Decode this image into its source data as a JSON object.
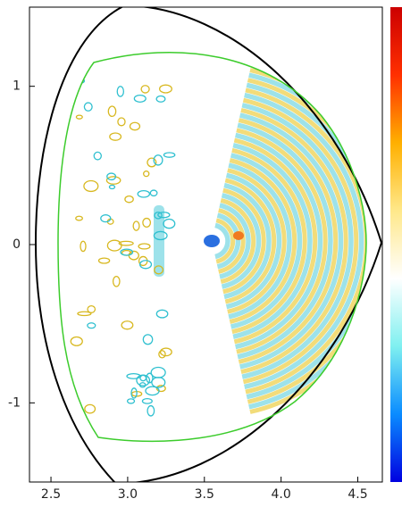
{
  "chart_data": {
    "type": "contour",
    "xlim": [
      2.36,
      4.66
    ],
    "ylim": [
      -1.5,
      1.5
    ],
    "xticks": [
      2.5,
      {
        "value": 3,
        "label": "3.0"
      },
      3.5,
      {
        "value": 4,
        "label": "4.0"
      },
      4.5
    ],
    "yticks": [
      -1,
      0,
      1
    ],
    "colormap": [
      "#0000e0",
      "#0a8cff",
      "#7ff0f0",
      "#ffffff",
      "#ffe88a",
      "#ffb000",
      "#ff3000",
      "#cc0000"
    ]
  }
}
